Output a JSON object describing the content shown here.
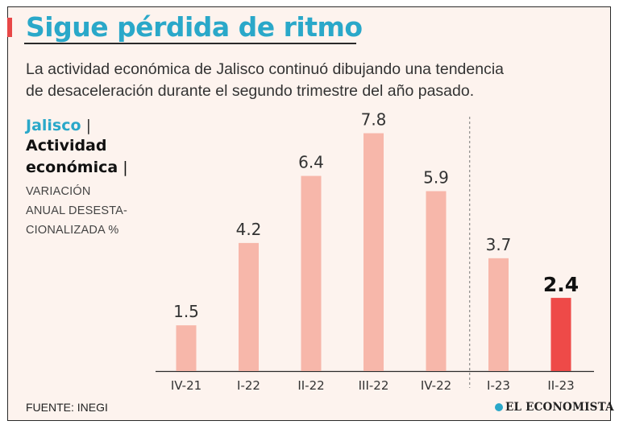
{
  "title": "Sigue pérdida de ritmo",
  "subtitle_line1": "La actividad económica de Jalisco continuó dibujando una tendencia",
  "subtitle_line2": "de desaceleración durante el segundo trimestre del año pasado.",
  "label_region": "Jalisco",
  "label_bold1": "Actividad",
  "label_bold2": "económica",
  "label_units_line1": "VARIACIÓN",
  "label_units_line2": "ANUAL DESESTA-",
  "label_units_line3": "CIONALIZADA %",
  "source": "FUENTE: INEGI",
  "brand": "EL ECONOMISTA",
  "colors": {
    "accent": "#2aa8c9",
    "bar": "#f7b7aa",
    "bar_highlight": "#ee4a48"
  },
  "chart_data": {
    "type": "bar",
    "categories": [
      "IV-21",
      "I-22",
      "II-22",
      "III-22",
      "IV-22",
      "I-23",
      "II-23"
    ],
    "values": [
      1.5,
      4.2,
      6.4,
      7.8,
      5.9,
      3.7,
      2.4
    ],
    "data_labels": [
      "1.5",
      "4.2",
      "6.4",
      "7.8",
      "5.9",
      "3.7",
      "2.4"
    ],
    "highlight_index": 6,
    "year_divider_after_index": 4,
    "ylim": [
      0,
      8.5
    ],
    "grid": false
  }
}
